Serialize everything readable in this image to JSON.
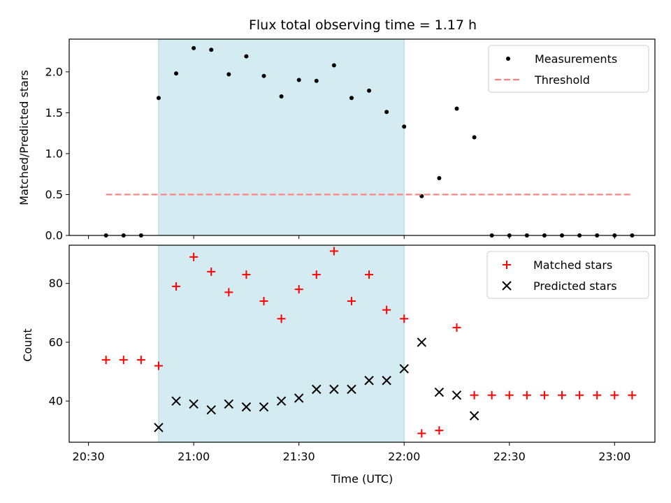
{
  "chart_data": [
    {
      "type": "scatter",
      "title": "Flux total observing time = 1.17 h",
      "xlabel": "",
      "ylabel": "Matched/Predicted stars",
      "ylim": [
        0,
        2.4
      ],
      "yticks": [
        "0.0",
        "0.5",
        "1.0",
        "1.5",
        "2.0"
      ],
      "ytick_values": [
        0,
        0.5,
        1.0,
        1.5,
        2.0
      ],
      "shaded_region": [
        "20:50",
        "22:00"
      ],
      "shade_color": "#d4ebf1",
      "legend_position": "upper right",
      "series": [
        {
          "name": "Measurements",
          "marker": "dot",
          "color": "#000000",
          "x": [
            "20:35",
            "20:40",
            "20:45",
            "20:50",
            "20:55",
            "21:00",
            "21:05",
            "21:10",
            "21:15",
            "21:20",
            "21:25",
            "21:30",
            "21:35",
            "21:40",
            "21:45",
            "21:50",
            "21:55",
            "22:00",
            "22:05",
            "22:10",
            "22:15",
            "22:20",
            "22:25",
            "22:30",
            "22:35",
            "22:40",
            "22:45",
            "22:50",
            "22:55",
            "23:00",
            "23:05"
          ],
          "y": [
            0,
            0,
            0,
            1.68,
            1.98,
            2.29,
            2.27,
            1.97,
            2.19,
            1.95,
            1.7,
            1.9,
            1.89,
            2.08,
            1.68,
            1.77,
            1.51,
            1.33,
            0.48,
            0.7,
            1.55,
            1.2,
            0,
            0,
            0,
            0,
            0,
            0,
            0,
            0,
            0
          ]
        },
        {
          "name": "Threshold",
          "marker": "dashed-line",
          "color": "#ff7f7f",
          "x": [
            "20:35",
            "23:05"
          ],
          "y": [
            0.5,
            0.5
          ]
        }
      ]
    },
    {
      "type": "scatter",
      "title": "",
      "xlabel": "Time (UTC)",
      "ylabel": "Count",
      "ylim": [
        26,
        93
      ],
      "yticks": [
        "40",
        "60",
        "80"
      ],
      "ytick_values": [
        40,
        60,
        80
      ],
      "xticks": [
        "20:30",
        "21:00",
        "21:30",
        "22:00",
        "22:30",
        "23:00"
      ],
      "shaded_region": [
        "20:50",
        "22:00"
      ],
      "shade_color": "#d4ebf1",
      "legend_position": "upper right",
      "series": [
        {
          "name": "Matched stars",
          "marker": "plus",
          "color": "#ff0000",
          "x": [
            "20:35",
            "20:40",
            "20:45",
            "20:50",
            "20:55",
            "21:00",
            "21:05",
            "21:10",
            "21:15",
            "21:20",
            "21:25",
            "21:30",
            "21:35",
            "21:40",
            "21:45",
            "21:50",
            "21:55",
            "22:00",
            "22:05",
            "22:10",
            "22:15",
            "22:20",
            "22:25",
            "22:30",
            "22:35",
            "22:40",
            "22:45",
            "22:50",
            "22:55",
            "23:00",
            "23:05"
          ],
          "y": [
            54,
            54,
            54,
            52,
            79,
            89,
            84,
            77,
            83,
            74,
            68,
            78,
            83,
            91,
            74,
            83,
            71,
            68,
            29,
            30,
            65,
            42,
            42,
            42,
            42,
            42,
            42,
            42,
            42,
            42,
            42
          ]
        },
        {
          "name": "Predicted stars",
          "marker": "x",
          "color": "#000000",
          "x": [
            "20:50",
            "20:55",
            "21:00",
            "21:05",
            "21:10",
            "21:15",
            "21:20",
            "21:25",
            "21:30",
            "21:35",
            "21:40",
            "21:45",
            "21:50",
            "21:55",
            "22:00",
            "22:05",
            "22:10",
            "22:15",
            "22:20"
          ],
          "y": [
            31,
            40,
            39,
            37,
            39,
            38,
            38,
            40,
            41,
            44,
            44,
            44,
            47,
            47,
            51,
            60,
            43,
            42,
            35
          ]
        }
      ]
    }
  ]
}
